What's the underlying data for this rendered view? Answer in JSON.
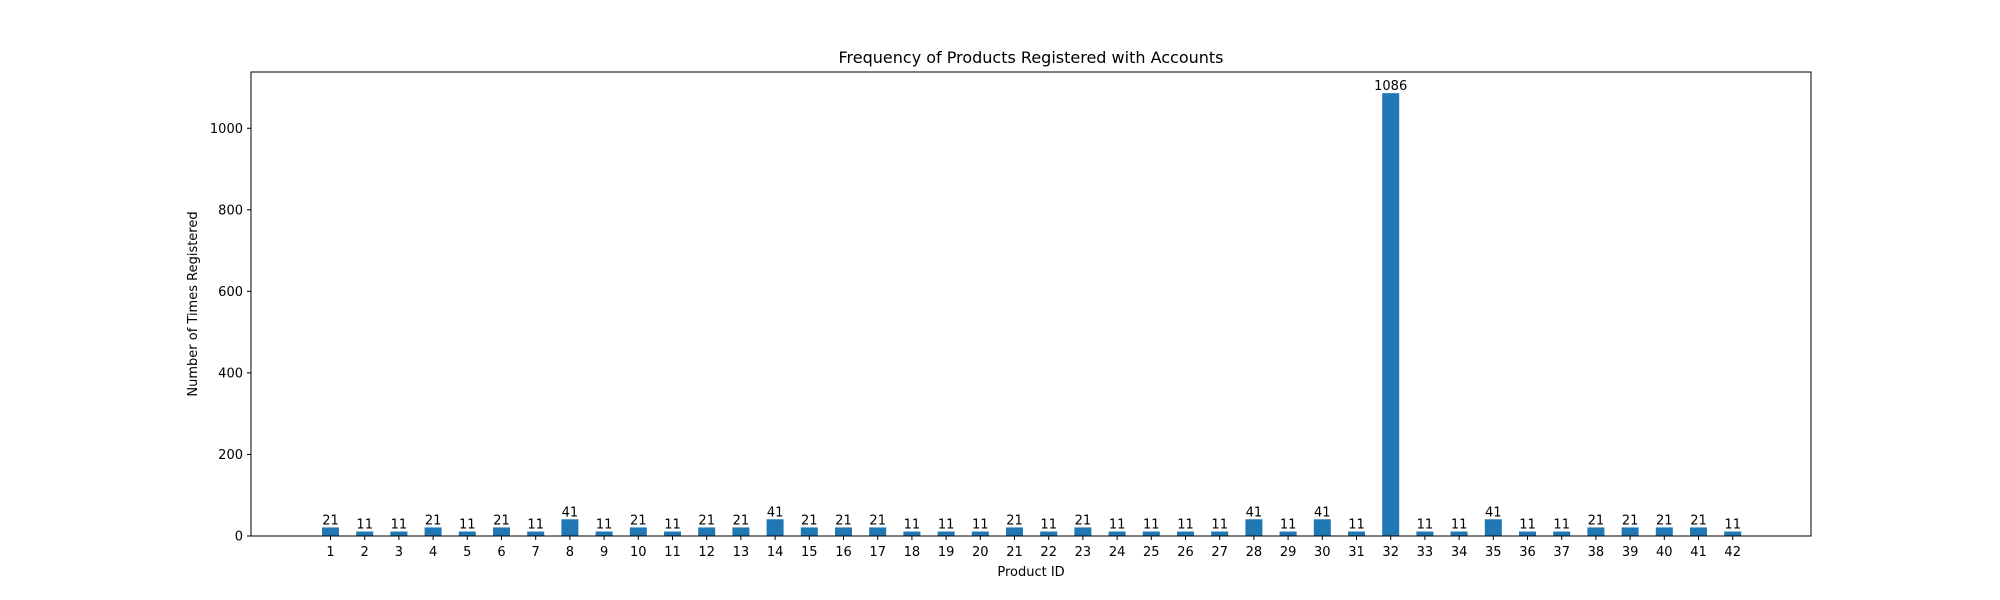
{
  "chart_data": {
    "type": "bar",
    "title": "Frequency of Products Registered with Accounts",
    "xlabel": "Product ID",
    "ylabel": "Number of Times Registered",
    "categories": [
      "1",
      "2",
      "3",
      "4",
      "5",
      "6",
      "7",
      "8",
      "9",
      "10",
      "11",
      "12",
      "13",
      "14",
      "15",
      "16",
      "17",
      "18",
      "19",
      "20",
      "21",
      "22",
      "23",
      "24",
      "25",
      "26",
      "27",
      "28",
      "29",
      "30",
      "31",
      "32",
      "33",
      "34",
      "35",
      "36",
      "37",
      "38",
      "39",
      "40",
      "41",
      "42"
    ],
    "values": [
      21,
      11,
      11,
      21,
      11,
      21,
      11,
      41,
      11,
      21,
      11,
      21,
      21,
      41,
      21,
      21,
      21,
      11,
      11,
      11,
      21,
      11,
      21,
      11,
      11,
      11,
      11,
      41,
      11,
      41,
      11,
      1086,
      11,
      11,
      41,
      11,
      11,
      21,
      21,
      21,
      21,
      11
    ],
    "data_labels": [
      "21",
      "11",
      "11",
      "21",
      "11",
      "21",
      "11",
      "41",
      "11",
      "21",
      "11",
      "21",
      "21",
      "41",
      "21",
      "21",
      "21",
      "11",
      "11",
      "11",
      "21",
      "11",
      "21",
      "11",
      "11",
      "11",
      "11",
      "41",
      "11",
      "41",
      "11",
      "1086",
      "11",
      "11",
      "41",
      "11",
      "11",
      "21",
      "21",
      "21",
      "21",
      "11"
    ],
    "yticks": [
      0,
      200,
      400,
      600,
      800,
      1000
    ],
    "ylim": [
      0,
      1140
    ],
    "grid": false,
    "bar_color": "#1f77b4"
  }
}
